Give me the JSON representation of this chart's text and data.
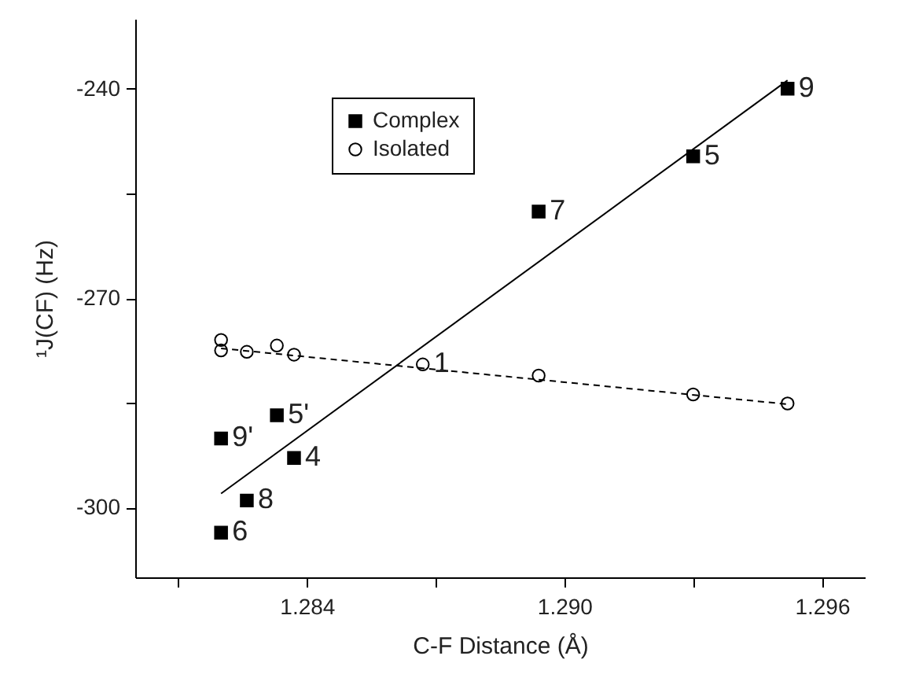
{
  "chart_data": {
    "type": "scatter",
    "xlabel": "C-F Distance (Å)",
    "ylabel": "¹J(CF) (Hz)",
    "xlim": [
      1.28,
      1.297
    ],
    "ylim": [
      -310,
      -230
    ],
    "xticks": [
      {
        "value": 1.281,
        "label": null
      },
      1.284,
      {
        "value": 1.287,
        "label": null
      },
      {
        "value": 1.29,
        "label": "1.290"
      },
      {
        "value": 1.293,
        "label": null
      },
      1.296
    ],
    "yticks": [
      {
        "value": -300,
        "label": "-300"
      },
      {
        "value": -285,
        "label": null
      },
      {
        "value": -270,
        "label": "-270"
      },
      {
        "value": -255,
        "label": null
      },
      {
        "value": -240,
        "label": "-240"
      }
    ],
    "grid": false,
    "legend": "top left",
    "series": [
      {
        "name": "Complex",
        "marker": "square",
        "color": "#000000",
        "x": [
          1.2952,
          1.293,
          1.2894,
          1.2833,
          1.282,
          1.2837,
          1.2826,
          1.282
        ],
        "values": [
          -240,
          -249.7,
          -257.6,
          -286.8,
          -290.1,
          -292.9,
          -299.0,
          -303.6
        ]
      },
      {
        "name": "Isolated",
        "marker": "circle",
        "color": "#000000",
        "x": [
          1.282,
          1.282,
          1.2826,
          1.2833,
          1.2837,
          1.2867,
          1.2894,
          1.293,
          1.2952
        ],
        "values": [
          -276.0,
          -277.5,
          -277.7,
          -276.8,
          -278.1,
          -279.5,
          -281.1,
          -283.8,
          -285.1
        ]
      },
      {
        "type": "line",
        "line_style": "solid",
        "marker": "none",
        "color": "#000000",
        "x": [
          1.282,
          1.2952
        ],
        "values": [
          -298.0,
          -238.8
        ]
      },
      {
        "type": "line",
        "line_style": "dashed",
        "marker": "none",
        "color": "#000000",
        "x": [
          1.282,
          1.2952
        ],
        "values": [
          -277.2,
          -285.2
        ]
      }
    ],
    "annotations": [
      {
        "text": "9",
        "x": 1.2952,
        "y": -240
      },
      {
        "text": "5",
        "x": 1.293,
        "y": -249.7
      },
      {
        "text": "7",
        "x": 1.2894,
        "y": -257.6
      },
      {
        "text": "1",
        "x": 1.2867,
        "y": -279.5
      },
      {
        "text": "5'",
        "x": 1.2833,
        "y": -286.8
      },
      {
        "text": "9'",
        "x": 1.282,
        "y": -290.1
      },
      {
        "text": "4",
        "x": 1.2837,
        "y": -292.9
      },
      {
        "text": "8",
        "x": 1.2826,
        "y": -299.0
      },
      {
        "text": "6",
        "x": 1.282,
        "y": -303.6
      }
    ]
  }
}
